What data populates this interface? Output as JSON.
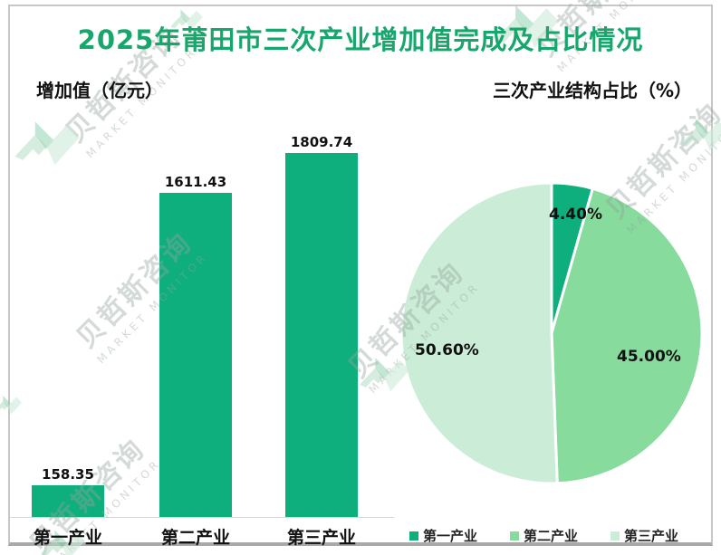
{
  "page": {
    "title": "2025年莆田市三次产业增加值完成及占比情况"
  },
  "bar_section": {
    "header": "增加值（亿元）"
  },
  "pie_section": {
    "header": "三次产业结构占比（%）"
  },
  "chart_data": [
    {
      "type": "bar",
      "title": "增加值（亿元）",
      "categories": [
        "第一产业",
        "第二产业",
        "第三产业"
      ],
      "values": [
        158.35,
        1611.43,
        1809.74
      ],
      "value_labels": [
        "158.35",
        "1611.43",
        "1809.74"
      ],
      "ylabel": "增加值（亿元）",
      "ylim": [
        0,
        2000
      ],
      "grid": false,
      "bar_color": "#0FAF7D"
    },
    {
      "type": "pie",
      "title": "三次产业结构占比（%）",
      "categories": [
        "第一产业",
        "第二产业",
        "第三产业"
      ],
      "values": [
        4.4,
        45.0,
        50.6
      ],
      "labels": [
        "4.40%",
        "45.00%",
        "50.60%"
      ],
      "colors": [
        "#0FAF7D",
        "#86DB9D",
        "#CBEDD7"
      ],
      "start_angle": "12-oclock",
      "direction": "clockwise",
      "legend_position": "bottom-right"
    }
  ],
  "legend": {
    "items": [
      {
        "label": "第一产业",
        "color": "#0FAF7D"
      },
      {
        "label": "第二产业",
        "color": "#86DB9D"
      },
      {
        "label": "第三产业",
        "color": "#CBEDD7"
      }
    ]
  },
  "watermark": {
    "text_cn": "贝哲斯咨询",
    "text_en": "MARKET MONITOR"
  },
  "colors": {
    "title_green": "#17A76C",
    "text_black": "#111111",
    "axis_line": "#D8D8D8",
    "frame_border": "#C7C7C7",
    "frame_bottom": "#A9A9A9"
  }
}
